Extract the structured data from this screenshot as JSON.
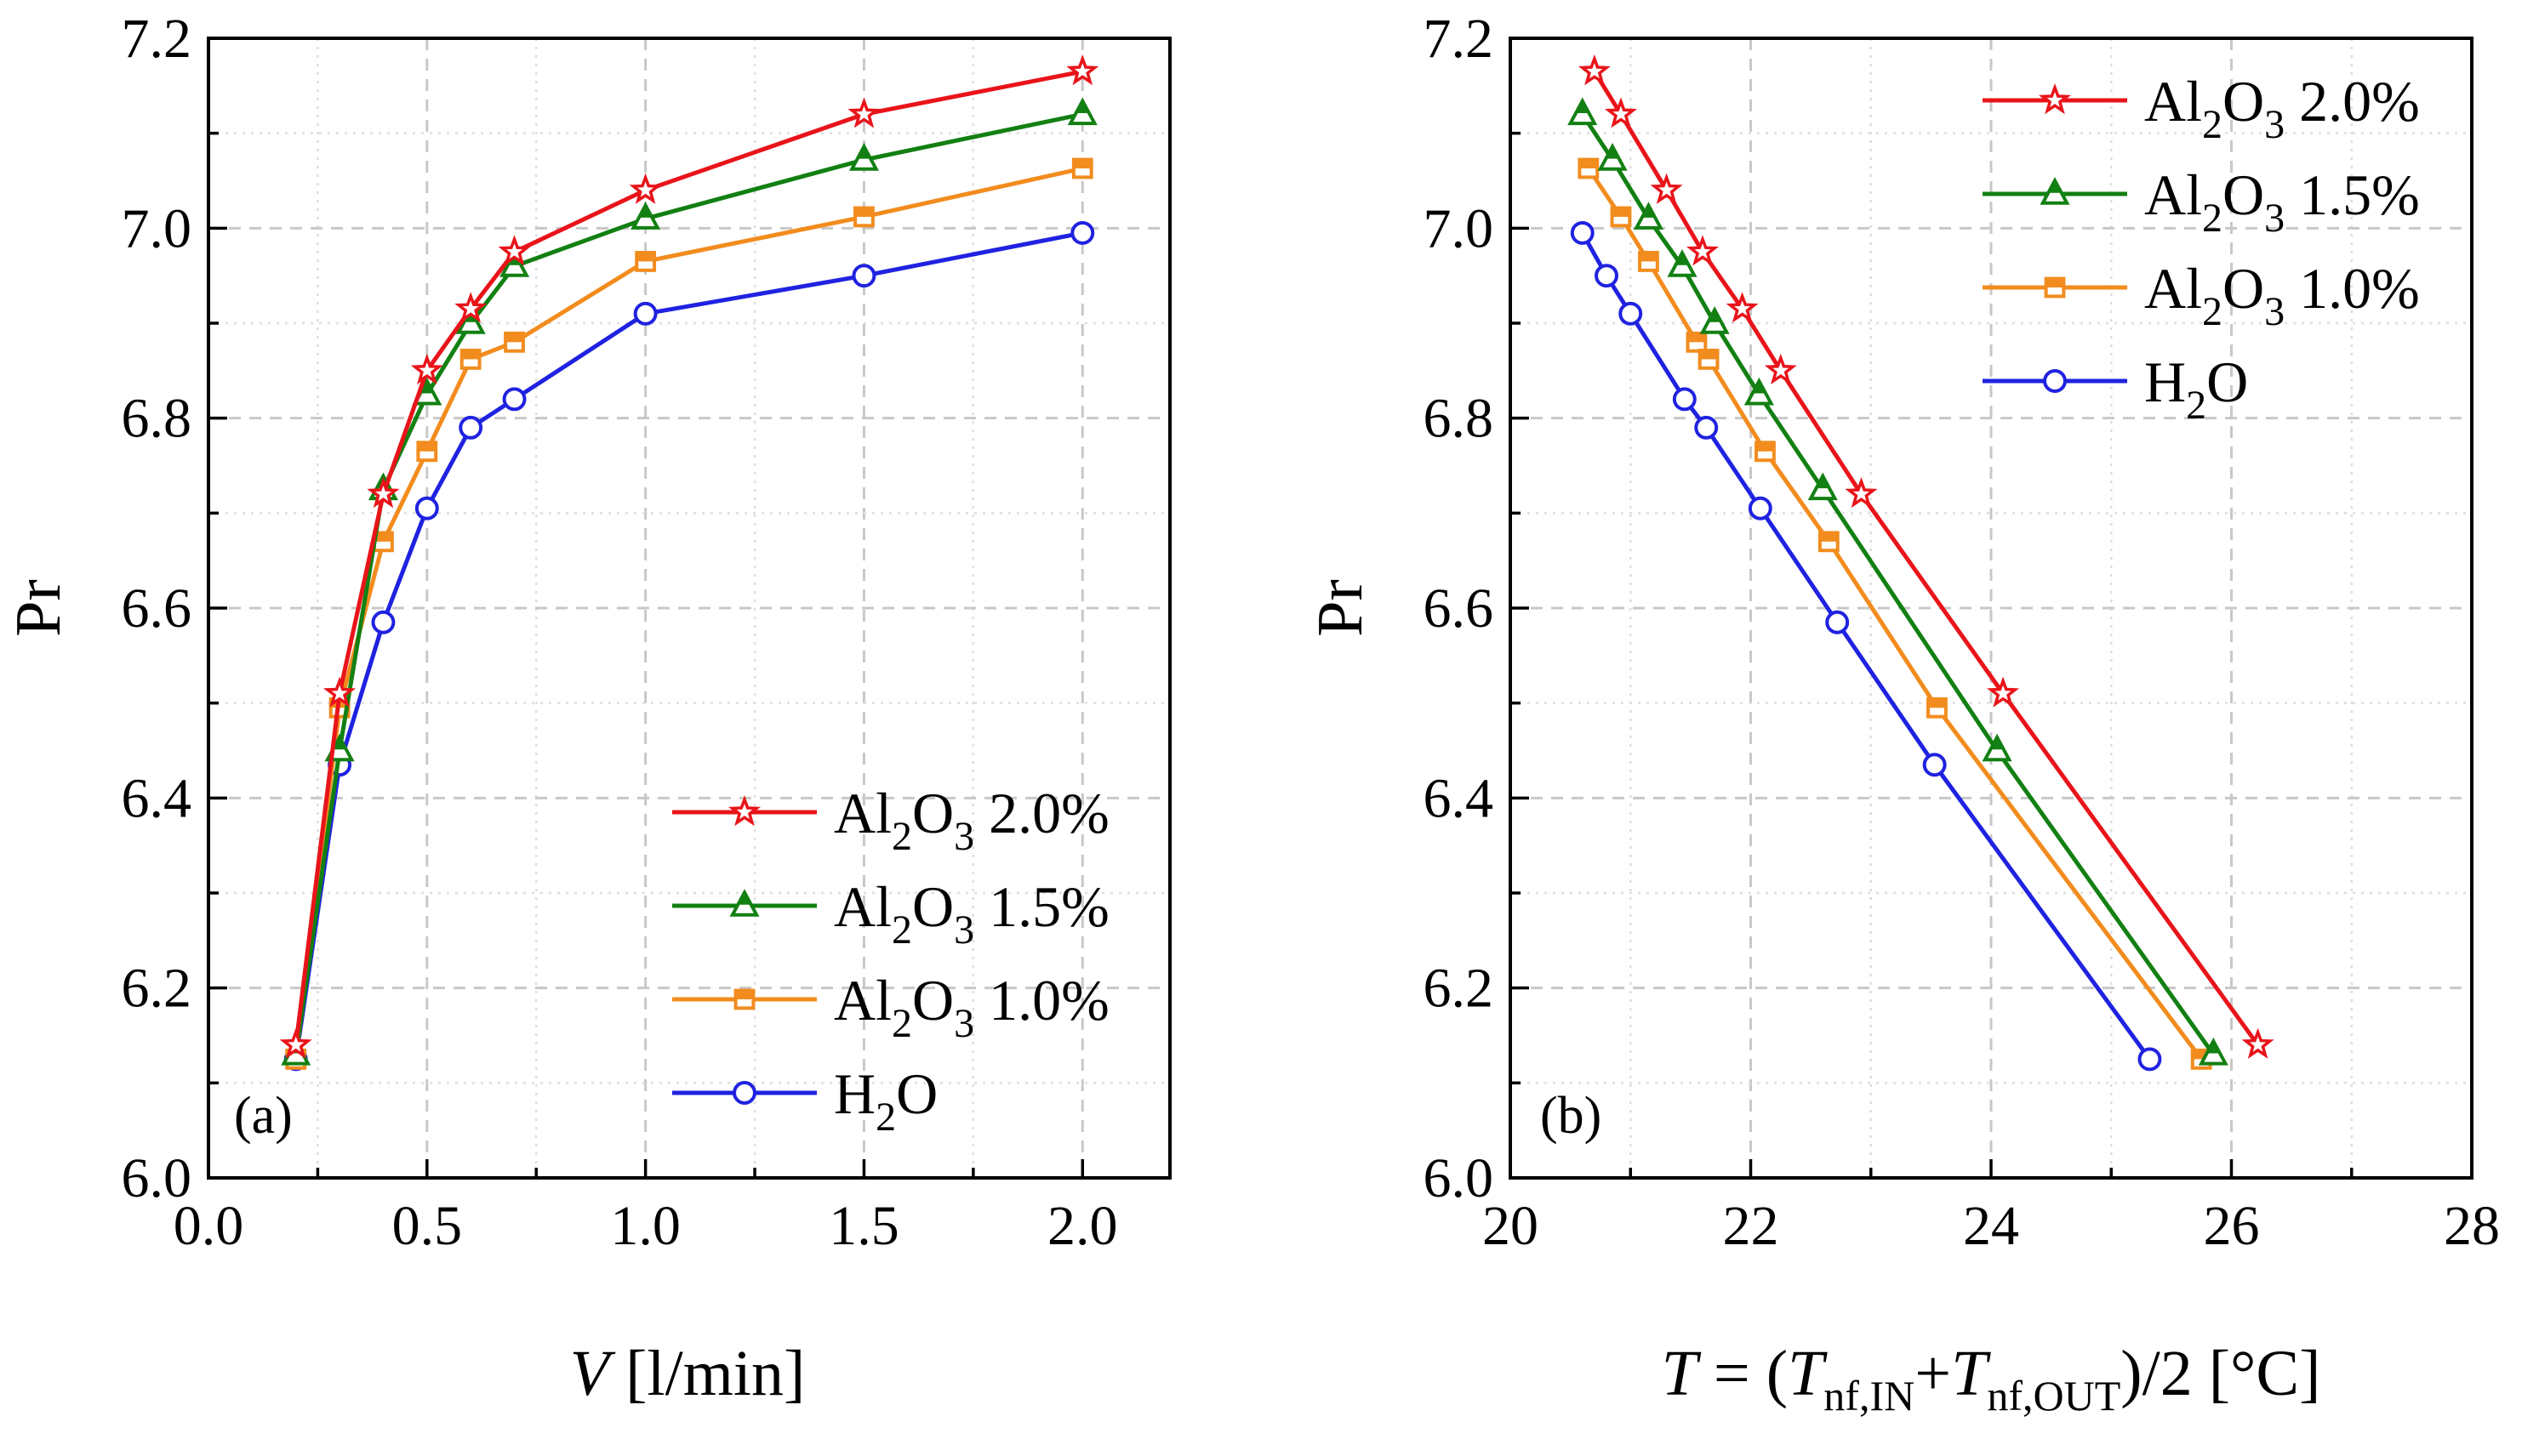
{
  "chart_data": [
    {
      "type": "line",
      "panel_label": "(a)",
      "xlabel": "V [l/min]",
      "ylabel": "Pr",
      "xlim": [
        0.0,
        2.2
      ],
      "ylim": [
        6.0,
        7.2
      ],
      "xticks": [
        "0.0",
        "0.5",
        "1.0",
        "1.5",
        "2.0"
      ],
      "yticks": [
        "6.0",
        "6.2",
        "6.4",
        "6.6",
        "6.8",
        "7.0",
        "7.2"
      ],
      "grid": true,
      "legend_position": "bottom-right",
      "series": [
        {
          "name": "Al2O3 2.0%",
          "color": "#e8141a",
          "marker": "star",
          "x": [
            0.2,
            0.3,
            0.4,
            0.5,
            0.6,
            0.7,
            1.0,
            1.5,
            2.0
          ],
          "y": [
            6.14,
            6.51,
            6.72,
            6.85,
            6.915,
            6.975,
            7.04,
            7.12,
            7.165
          ]
        },
        {
          "name": "Al2O3 1.5%",
          "color": "#128012",
          "marker": "triangle",
          "x": [
            0.2,
            0.3,
            0.4,
            0.5,
            0.6,
            0.7,
            1.0,
            1.5,
            2.0
          ],
          "y": [
            6.13,
            6.45,
            6.725,
            6.825,
            6.9,
            6.96,
            7.01,
            7.072,
            7.12
          ]
        },
        {
          "name": "Al2O3 1.0%",
          "color": "#f28c1e",
          "marker": "square",
          "x": [
            0.2,
            0.3,
            0.4,
            0.5,
            0.6,
            0.7,
            1.0,
            1.5,
            2.0
          ],
          "y": [
            6.125,
            6.495,
            6.67,
            6.765,
            6.862,
            6.88,
            6.965,
            7.012,
            7.063
          ]
        },
        {
          "name": "H2O",
          "color": "#1f22e0",
          "marker": "circle",
          "x": [
            0.2,
            0.3,
            0.4,
            0.5,
            0.6,
            0.7,
            1.0,
            1.5,
            2.0
          ],
          "y": [
            6.125,
            6.435,
            6.585,
            6.705,
            6.79,
            6.82,
            6.91,
            6.95,
            6.995
          ]
        }
      ]
    },
    {
      "type": "line",
      "panel_label": "(b)",
      "xlabel": "T = (Tnf,IN+Tnf,OUT)/2 [°C]",
      "ylabel": "Pr",
      "xlim": [
        20,
        28
      ],
      "ylim": [
        6.0,
        7.2
      ],
      "xticks": [
        "20",
        "22",
        "24",
        "26",
        "28"
      ],
      "yticks": [
        "6.0",
        "6.2",
        "6.4",
        "6.6",
        "6.8",
        "7.0",
        "7.2"
      ],
      "grid": true,
      "legend_position": "top-right",
      "series": [
        {
          "name": "Al2O3 2.0%",
          "color": "#e8141a",
          "marker": "star",
          "x": [
            20.7,
            20.92,
            21.3,
            21.6,
            21.93,
            22.25,
            22.92,
            24.1,
            26.22
          ],
          "y": [
            7.165,
            7.12,
            7.04,
            6.975,
            6.915,
            6.85,
            6.72,
            6.51,
            6.14
          ]
        },
        {
          "name": "Al2O3 1.5%",
          "color": "#128012",
          "marker": "triangle",
          "x": [
            20.6,
            20.85,
            21.15,
            21.43,
            21.7,
            22.07,
            22.6,
            24.05,
            25.85
          ],
          "y": [
            7.12,
            7.072,
            7.01,
            6.96,
            6.9,
            6.825,
            6.725,
            6.45,
            6.13
          ]
        },
        {
          "name": "Al2O3 1.0%",
          "color": "#f28c1e",
          "marker": "square",
          "x": [
            20.65,
            20.92,
            21.15,
            21.55,
            21.65,
            22.12,
            22.65,
            23.55,
            25.75
          ],
          "y": [
            7.063,
            7.012,
            6.965,
            6.88,
            6.862,
            6.765,
            6.67,
            6.495,
            6.125
          ]
        },
        {
          "name": "H2O",
          "color": "#1f22e0",
          "marker": "circle",
          "x": [
            20.6,
            20.8,
            21.0,
            21.45,
            21.63,
            22.08,
            22.72,
            23.53,
            25.32
          ],
          "y": [
            6.995,
            6.95,
            6.91,
            6.82,
            6.79,
            6.705,
            6.585,
            6.435,
            6.125
          ]
        }
      ]
    }
  ],
  "legend_labels": [
    {
      "base": "Al",
      "sub1": "2",
      "mid": "O",
      "sub2": "3",
      "tail": " 2.0%"
    },
    {
      "base": "Al",
      "sub1": "2",
      "mid": "O",
      "sub2": "3",
      "tail": " 1.5%"
    },
    {
      "base": "Al",
      "sub1": "2",
      "mid": "O",
      "sub2": "3",
      "tail": " 1.0%"
    },
    {
      "base": "H",
      "sub1": "2",
      "mid": "O",
      "sub2": "",
      "tail": ""
    }
  ],
  "axis_titles": {
    "a_x_var": "V",
    "a_x_unit": " [l/min]",
    "b_x_T": "T",
    "b_x_eq": " = (",
    "b_x_T1": "T",
    "b_x_sub1": "nf,IN",
    "b_x_plus": "+",
    "b_x_T2": "T",
    "b_x_sub2": "nf,OUT",
    "b_x_tail": ")/2 [°C]",
    "y": "Pr"
  }
}
